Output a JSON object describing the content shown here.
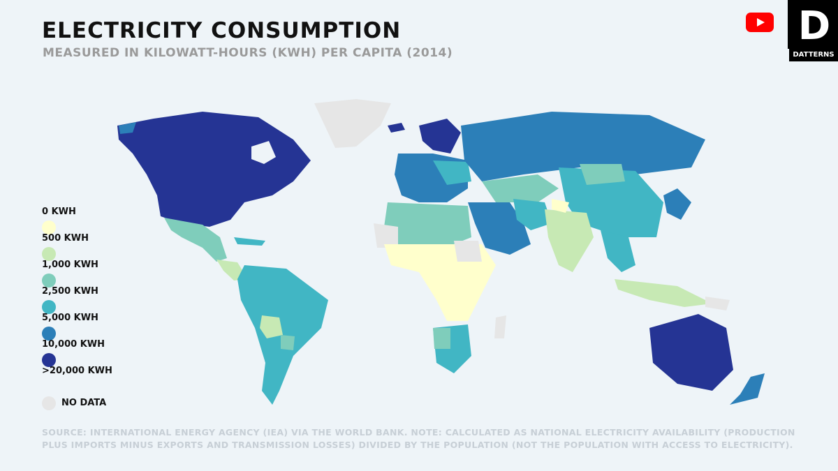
{
  "header": {
    "title": "ELECTRICITY CONSUMPTION",
    "subtitle": "MEASURED IN KILOWATT-HOURS (KWH) PER CAPITA (2014)"
  },
  "legend": {
    "items": [
      {
        "label": "0 KWH",
        "color": "#ffffcc"
      },
      {
        "label": "500 KWH",
        "color": "#c7e9b4"
      },
      {
        "label": "1,000 KWH",
        "color": "#7fcdbb"
      },
      {
        "label": "2,500 KWH",
        "color": "#41b6c4"
      },
      {
        "label": "5,000 KWH",
        "color": "#2c7fb8"
      },
      {
        "label": "10,000 KWH",
        "color": "#253494"
      }
    ],
    "top_label": ">20,000 KWH",
    "nodata_label": "NO DATA",
    "nodata_color": "#e6e6e6"
  },
  "footer": {
    "source": "SOURCE: INTERNATIONAL ENERGY AGENCY (IEA) VIA THE WORLD BANK. NOTE: CALCULATED AS NATIONAL ELECTRICITY AVAILABILITY (PRODUCTION PLUS IMPORTS MINUS EXPORTS AND TRANSMISSION LOSSES) DIVIDED BY THE POPULATION (NOT THE POPULATION WITH ACCESS TO ELECTRICITY)."
  },
  "brand": {
    "name": "DATTERNS",
    "logo_letter": "D",
    "youtube_icon": "youtube-icon"
  }
}
